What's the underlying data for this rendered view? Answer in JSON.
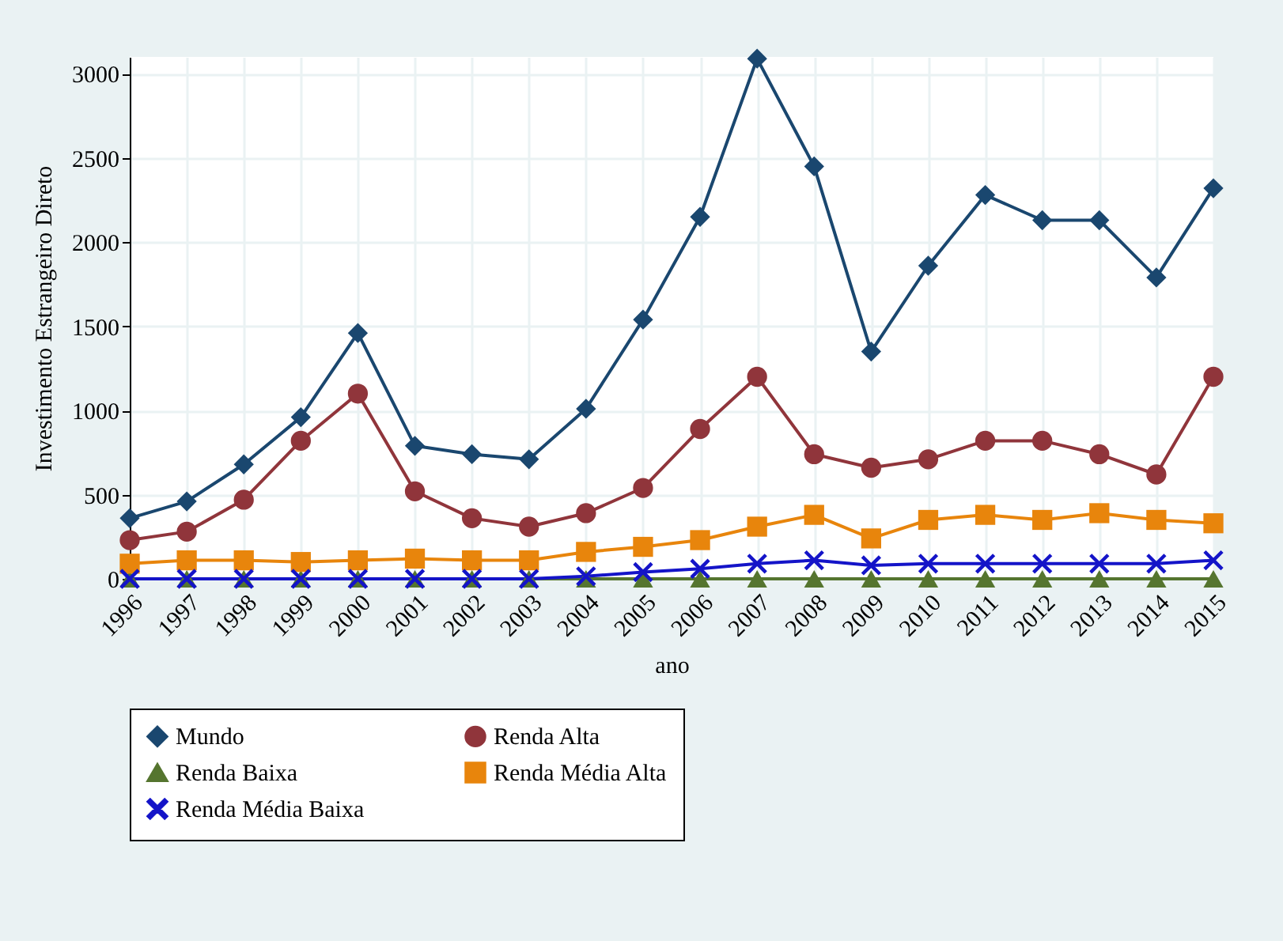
{
  "chart_data": {
    "type": "line",
    "xlabel": "ano",
    "ylabel": "Investimento Estrangeiro Direto",
    "categories": [
      "1996",
      "1997",
      "1998",
      "1999",
      "2000",
      "2001",
      "2002",
      "2003",
      "2004",
      "2005",
      "2006",
      "2007",
      "2008",
      "2009",
      "2010",
      "2011",
      "2012",
      "2013",
      "2014",
      "2015"
    ],
    "series": [
      {
        "name": "Mundo",
        "color": "#1a476f",
        "marker": "diamond",
        "values": [
          360,
          460,
          680,
          960,
          1460,
          790,
          740,
          710,
          1010,
          1540,
          2150,
          3090,
          2450,
          1350,
          1860,
          2280,
          2130,
          2130,
          1790,
          2320
        ]
      },
      {
        "name": "Renda Alta",
        "color": "#90353b",
        "marker": "circle",
        "values": [
          230,
          280,
          470,
          820,
          1100,
          520,
          360,
          310,
          390,
          540,
          890,
          1200,
          740,
          660,
          710,
          820,
          820,
          740,
          620,
          1200
        ]
      },
      {
        "name": "Renda Baixa",
        "color": "#55752f",
        "marker": "triangle",
        "values": [
          0,
          0,
          0,
          0,
          0,
          0,
          0,
          0,
          0,
          0,
          0,
          0,
          0,
          0,
          0,
          0,
          0,
          0,
          0,
          0
        ]
      },
      {
        "name": "Renda Média Alta",
        "color": "#e8850c",
        "marker": "square",
        "values": [
          90,
          110,
          110,
          100,
          110,
          120,
          110,
          110,
          160,
          190,
          230,
          310,
          380,
          240,
          350,
          380,
          350,
          390,
          350,
          330
        ]
      },
      {
        "name": "Renda Média Baixa",
        "color": "#1414c8",
        "marker": "cross",
        "values": [
          0,
          0,
          0,
          0,
          0,
          0,
          0,
          0,
          15,
          40,
          60,
          90,
          110,
          80,
          90,
          90,
          90,
          90,
          90,
          110
        ]
      }
    ],
    "ylim": [
      0,
      3100
    ],
    "yticks": [
      0,
      500,
      1000,
      1500,
      2000,
      2500,
      3000
    ],
    "grid": true,
    "legend": "bottom"
  }
}
